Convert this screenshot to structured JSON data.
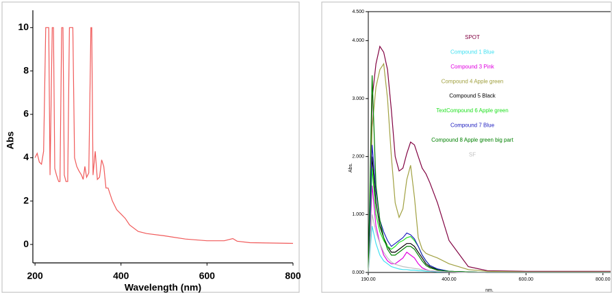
{
  "chart_data": [
    {
      "type": "line",
      "xlabel": "Wavelength (nm)",
      "ylabel": "Abs",
      "color": "#f05858",
      "x": [
        200,
        205,
        210,
        215,
        220,
        225,
        232,
        235,
        240,
        243,
        246,
        250,
        255,
        258,
        262,
        265,
        268,
        272,
        276,
        280,
        288,
        292,
        297,
        302,
        308,
        312,
        316,
        320,
        325,
        330,
        332,
        335,
        340,
        345,
        350,
        355,
        360,
        365,
        370,
        380,
        390,
        400,
        410,
        420,
        440,
        460,
        500,
        550,
        600,
        640,
        660,
        670,
        700,
        800
      ],
      "values": [
        4.0,
        4.2,
        3.8,
        3.7,
        4.3,
        10,
        10,
        3.2,
        10,
        10,
        3.5,
        3.2,
        2.9,
        2.9,
        10,
        10,
        3.2,
        2.9,
        2.9,
        10,
        10,
        4.0,
        3.6,
        3.4,
        3.2,
        3.0,
        3.6,
        3.1,
        3.3,
        10,
        10,
        3.2,
        4.3,
        3.0,
        3.1,
        3.9,
        3.6,
        2.6,
        2.6,
        2.0,
        1.6,
        1.4,
        1.2,
        0.9,
        0.6,
        0.5,
        0.4,
        0.25,
        0.17,
        0.17,
        0.27,
        0.15,
        0.08,
        0.05
      ],
      "xlim": [
        195,
        800
      ],
      "xticks": [
        200,
        400,
        600,
        800
      ],
      "ylim": [
        -0.85,
        10.8
      ],
      "yticks": [
        0,
        2,
        4,
        6,
        8,
        10
      ]
    },
    {
      "type": "line",
      "xlabel": "nm.",
      "ylabel": "Abs.",
      "x": [
        190,
        200,
        210,
        220,
        230,
        240,
        250,
        260,
        270,
        280,
        290,
        300,
        310,
        320,
        330,
        340,
        350,
        370,
        400,
        450,
        500,
        600,
        700,
        800,
        820
      ],
      "xlim": [
        190,
        820
      ],
      "xticks": [
        {
          "value": 190,
          "label": "190.00"
        },
        {
          "value": 400,
          "label": "400.00"
        },
        {
          "value": 600,
          "label": "600.00"
        },
        {
          "value": 800,
          "label": "800.00"
        }
      ],
      "ylim": [
        0,
        4.5
      ],
      "yticks": [
        {
          "value": 0,
          "label": "0.000"
        },
        {
          "value": 1,
          "label": "1.000"
        },
        {
          "value": 2,
          "label": "2.000"
        },
        {
          "value": 3,
          "label": "3.000"
        },
        {
          "value": 4,
          "label": "4.000"
        },
        {
          "value": 4.5,
          "label": "4.500"
        }
      ],
      "series": [
        {
          "name": "SPOT",
          "color": "#800040",
          "values": [
            0,
            3.0,
            3.6,
            3.9,
            3.8,
            3.5,
            2.8,
            2.0,
            1.75,
            1.8,
            2.05,
            2.25,
            2.2,
            2.0,
            1.8,
            1.7,
            1.55,
            1.2,
            0.55,
            0.1,
            0.03,
            0.02,
            0.02,
            0.02,
            0.02
          ]
        },
        {
          "name": "Compound 1 Blue",
          "color": "#40e0f0",
          "values": [
            0,
            0.8,
            0.5,
            0.3,
            0.2,
            0.15,
            0.1,
            0.08,
            0.06,
            0.05,
            0.05,
            0.04,
            0.04,
            0.03,
            0.03,
            0.02,
            0.02,
            0.01,
            0.01,
            0,
            0,
            0,
            0,
            0,
            0
          ]
        },
        {
          "name": "Compound 3 Pink",
          "color": "#e000e0",
          "values": [
            0,
            1.5,
            0.8,
            0.5,
            0.3,
            0.2,
            0.15,
            0.15,
            0.2,
            0.25,
            0.35,
            0.3,
            0.25,
            0.15,
            0.08,
            0.05,
            0.03,
            0.02,
            0.01,
            0,
            0,
            0,
            0,
            0,
            0
          ]
        },
        {
          "name": "Compound 4 Apple green",
          "color": "#a0a040",
          "values": [
            0,
            2.5,
            3.2,
            3.5,
            3.6,
            3.0,
            2.0,
            1.2,
            0.95,
            1.1,
            1.6,
            1.85,
            1.3,
            0.6,
            0.4,
            0.33,
            0.3,
            0.25,
            0.15,
            0.05,
            0.02,
            0.01,
            0.01,
            0.01,
            0.01
          ]
        },
        {
          "name": "Compound 5 Black",
          "color": "#000000",
          "values": [
            0,
            2.0,
            1.2,
            0.8,
            0.6,
            0.45,
            0.35,
            0.35,
            0.4,
            0.45,
            0.5,
            0.5,
            0.45,
            0.35,
            0.25,
            0.15,
            0.1,
            0.05,
            0.02,
            0.01,
            0,
            0,
            0,
            0,
            0
          ]
        },
        {
          "name": "TextCompound 6 Apple green",
          "color": "#20e020",
          "values": [
            0,
            1.8,
            1.0,
            0.7,
            0.55,
            0.45,
            0.4,
            0.45,
            0.52,
            0.55,
            0.6,
            0.62,
            0.55,
            0.45,
            0.3,
            0.2,
            0.12,
            0.06,
            0.02,
            0.01,
            0,
            0,
            0,
            0,
            0
          ]
        },
        {
          "name": "Compound 7 Blue",
          "color": "#2020c0",
          "values": [
            0,
            2.2,
            1.4,
            0.9,
            0.7,
            0.55,
            0.45,
            0.5,
            0.55,
            0.6,
            0.68,
            0.65,
            0.58,
            0.45,
            0.3,
            0.2,
            0.12,
            0.06,
            0.02,
            0.01,
            0,
            0,
            0,
            0,
            0
          ]
        },
        {
          "name": "Compound 8 Apple green big part",
          "color": "#008000",
          "values": [
            0,
            3.4,
            1.5,
            0.9,
            0.6,
            0.4,
            0.3,
            0.3,
            0.35,
            0.4,
            0.45,
            0.45,
            0.4,
            0.3,
            0.2,
            0.12,
            0.08,
            0.04,
            0.02,
            0.01,
            0,
            0,
            0,
            0,
            0
          ]
        },
        {
          "name": "SF",
          "color": "#c0c0c0",
          "values": [
            0,
            1.0,
            0.7,
            0.5,
            0.35,
            0.25,
            0.18,
            0.14,
            0.12,
            0.1,
            0.09,
            0.08,
            0.07,
            0.06,
            0.05,
            0.04,
            0.03,
            0.02,
            0.01,
            0,
            0,
            0,
            0,
            0,
            0
          ]
        }
      ]
    }
  ]
}
